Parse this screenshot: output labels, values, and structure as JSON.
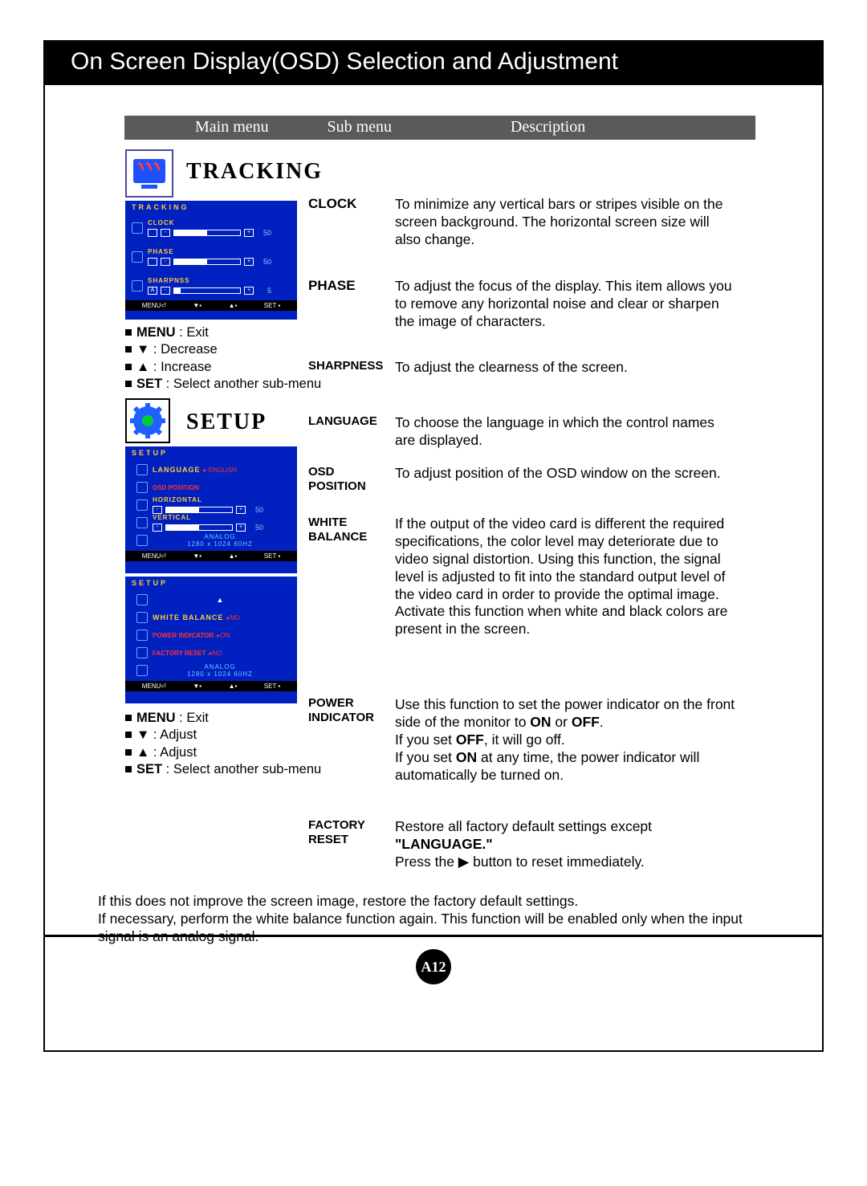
{
  "page_title": "On Screen Display(OSD) Selection and Adjustment",
  "page_number": "A12",
  "headers": {
    "main": "Main menu",
    "sub": "Sub menu",
    "desc": "Description"
  },
  "tracking": {
    "title": "TRACKING",
    "osd_header": "TRACKING",
    "items": [
      {
        "label": "CLOCK",
        "value": "50",
        "fill": 50
      },
      {
        "label": "PHASE",
        "value": "50",
        "fill": 50
      },
      {
        "label": "SHARPNSS",
        "prefix": "A",
        "value": "5",
        "fill": 10
      }
    ],
    "bottom": [
      "MENU⏎",
      "▼▪",
      "▲▪",
      "SET ▪"
    ],
    "legend": [
      {
        "k": "MENU",
        "v": ": Exit"
      },
      {
        "k": "▼",
        "v": ": Decrease"
      },
      {
        "k": "▲",
        "v": ": Increase"
      },
      {
        "k": "SET",
        "v": ": Select another sub-menu"
      }
    ],
    "subs": [
      {
        "label": "CLOCK",
        "desc": "To minimize any vertical bars or stripes visible on the screen background. The horizontal screen size will also change."
      },
      {
        "label": "PHASE",
        "desc": "To adjust the focus of the display. This item allows you to remove any horizontal noise and clear or sharpen the image of characters."
      },
      {
        "label": "SHARPNESS",
        "desc": "To adjust the clearness of the screen."
      }
    ]
  },
  "setup": {
    "title": "SETUP",
    "osd1_header": "SETUP",
    "osd1": {
      "language_label": "LANGUAGE",
      "language_val": "ENGLISH",
      "osd_pos": "OSD POSITION",
      "horiz": "HORIZONTAL",
      "horiz_val": "50",
      "vert": "VERTICAL",
      "vert_val": "50",
      "signal": "ANALOG",
      "res": "1280 x 1024 60HZ"
    },
    "osd2_header": "SETUP",
    "osd2": {
      "wb": "WHITE BALANCE",
      "wb_val": "NO",
      "pi": "POWER INDICATOR",
      "pi_val": "ON",
      "fr": "FACTORY RESET",
      "fr_val": "NO",
      "signal": "ANALOG",
      "res": "1280 x 1024 60HZ"
    },
    "legend": [
      {
        "k": "MENU",
        "v": ": Exit"
      },
      {
        "k": "▼",
        "v": ": Adjust"
      },
      {
        "k": "▲",
        "v": ": Adjust"
      },
      {
        "k": "SET",
        "v": ": Select another sub-menu"
      }
    ],
    "subs": [
      {
        "label": "LANGUAGE",
        "desc": "To choose the language in which the control names are displayed."
      },
      {
        "label": "OSD POSITION",
        "desc": "To adjust position of the OSD window on the screen."
      },
      {
        "label": "WHITE BALANCE",
        "desc": "If the output of the video card is different the required specifications, the color level may deteriorate due to video signal distortion. Using this function, the signal level is adjusted to fit into the standard output level of the video card in order to provide the optimal image. Activate this function when white and black colors are present in the screen."
      },
      {
        "label": "POWER INDICATOR",
        "desc_html": "Use this function to set the power indicator on the front side of the monitor to <b>ON</b> or <b>OFF</b>.<br>If you set <b>OFF</b>, it will go off.<br>If you set <b>ON</b> at any time, the power indicator will automatically be turned on."
      },
      {
        "label": "FACTORY RESET",
        "desc_html": "Restore all factory default settings except <b>\"LANGUAGE.\"</b><br>Press the ▶ button to reset immediately."
      }
    ]
  },
  "footnote": "If this does not improve the screen image, restore the factory default settings.\nIf necessary, perform the white balance function again. This function will be enabled only when the input signal is an analog signal."
}
